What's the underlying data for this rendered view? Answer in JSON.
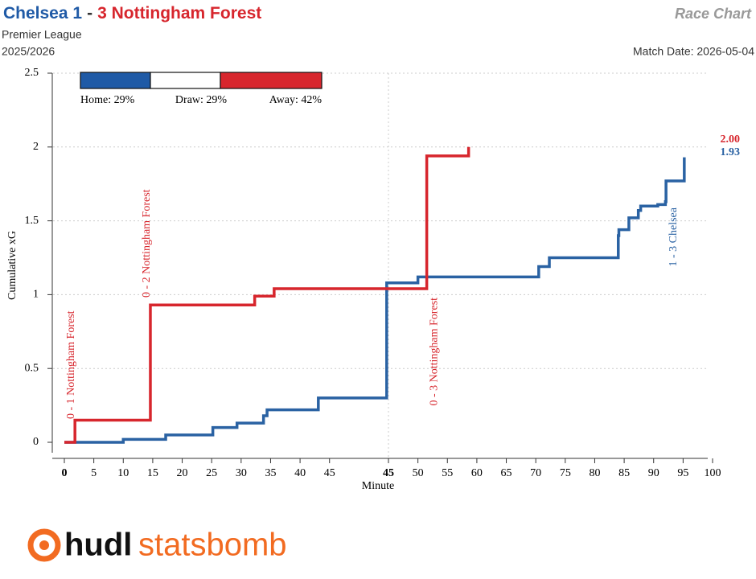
{
  "header": {
    "home_label": "Chelsea 1",
    "separator": "-",
    "away_label": "3 Nottingham Forest",
    "chart_name": "Race Chart",
    "competition": "Premier League",
    "season": "2025/2026",
    "match_date": "Match Date: 2026-05-04"
  },
  "chart_data": {
    "type": "step-line",
    "x_label": "Minute",
    "y_label": "Cumulative xG",
    "xlim": [
      0,
      110
    ],
    "xticks": [
      {
        "value": 0,
        "label": "0",
        "bold": true
      },
      5,
      10,
      15,
      20,
      25,
      30,
      35,
      40,
      45,
      {
        "value": 55,
        "label": "45",
        "bold": true,
        "vline": true
      },
      {
        "value": 60,
        "label": "50"
      },
      {
        "value": 65,
        "label": "55"
      },
      {
        "value": 70,
        "label": "60"
      },
      {
        "value": 75,
        "label": "65"
      },
      {
        "value": 80,
        "label": "70"
      },
      {
        "value": 85,
        "label": "75"
      },
      {
        "value": 90,
        "label": "80"
      },
      {
        "value": 95,
        "label": "85"
      },
      {
        "value": 100,
        "label": "90"
      },
      {
        "value": 105,
        "label": "95"
      },
      {
        "value": 110,
        "label": "100"
      }
    ],
    "ylim": [
      0,
      2.5
    ],
    "yticks": [
      0,
      0.5,
      1,
      1.5,
      2,
      2.5
    ],
    "grid": true,
    "series": [
      {
        "name": "Chelsea",
        "color": "#2a62a3",
        "final_label": "1.93",
        "x": [
          0,
          10,
          17.2,
          25.2,
          29.3,
          33.8,
          34.4,
          43.1,
          54.7,
          60,
          80.5,
          82.3,
          94,
          94.1,
          95.8,
          97.4,
          97.8,
          100.7,
          102,
          102.1,
          105.2
        ],
        "values": [
          0,
          0.02,
          0.05,
          0.1,
          0.13,
          0.18,
          0.22,
          0.3,
          1.08,
          1.12,
          1.19,
          1.25,
          1.4,
          1.44,
          1.52,
          1.57,
          1.6,
          1.61,
          1.63,
          1.77,
          1.93
        ]
      },
      {
        "name": "Nottingham Forest",
        "color": "#d7262d",
        "final_label": "2.00",
        "x": [
          0,
          1.8,
          14.6,
          32.3,
          35.6,
          61.5,
          68.6
        ],
        "values": [
          0,
          0.15,
          0.93,
          0.99,
          1.04,
          1.94,
          2.0
        ]
      }
    ],
    "annotations": [
      {
        "x": 1.2,
        "label": "0 - 1 Nottingham Forest",
        "series": 1
      },
      {
        "x": 14,
        "label": "0 - 2 Nottingham Forest",
        "series": 1
      },
      {
        "x": 62.8,
        "label": "0 - 3 Nottingham Forest",
        "series": 1
      },
      {
        "x": 103.4,
        "label": "1 - 3 Chelsea",
        "series": 0
      }
    ],
    "outcome_probabilities": {
      "categories": [
        "Home",
        "Draw",
        "Away"
      ],
      "values": [
        29,
        29,
        42
      ],
      "value_labels": [
        "Home: 29%",
        "Draw: 29%",
        "Away: 42%"
      ],
      "colors": [
        "#1f5aa6",
        "#ffffff",
        "#d7262d"
      ]
    }
  },
  "logo": {
    "part1": "hudl",
    "part2": "statsbomb"
  }
}
